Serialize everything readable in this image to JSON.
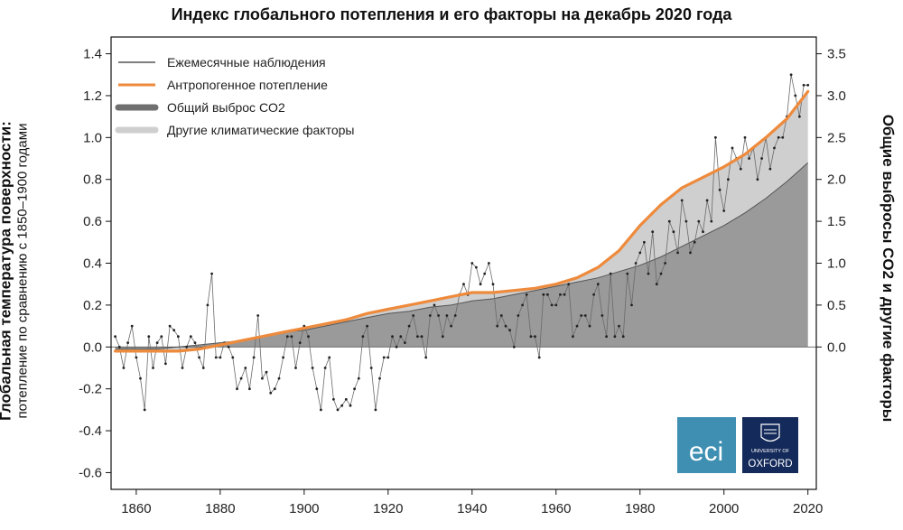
{
  "title": "Индекс глобального потепления и его факторы на декабрь 2020 года",
  "ylabel_left_main": "Глобальная температура поверхности:",
  "ylabel_left_sub": "потепление по сравнению с 1850–1900 годами",
  "ylabel_right": "Общие выбросы CO2 и другие факторы",
  "logos": {
    "eci": "eci",
    "oxford_small": "UNIVERSITY OF",
    "oxford": "OXFORD"
  },
  "colors": {
    "observations": "#444444",
    "anthropogenic": "#ee8a3c",
    "co2": "#9a9a9a",
    "other": "#cfcfcf",
    "eci_bg": "#3f8fb2",
    "oxford_bg": "#142a5a"
  },
  "chart_data": {
    "type": "line",
    "title": "Индекс глобального потепления и его факторы на декабрь 2020 года",
    "xlim": [
      1854,
      2022
    ],
    "ylim": [
      -0.68,
      1.48
    ],
    "y2lim": [
      -1.7,
      3.7
    ],
    "x_ticks": [
      1860,
      1880,
      1900,
      1920,
      1940,
      1960,
      1980,
      2000,
      2020
    ],
    "y_ticks": [
      -0.6,
      -0.4,
      -0.2,
      0.0,
      0.2,
      0.4,
      0.6,
      0.8,
      1.0,
      1.2,
      1.4
    ],
    "y_tick_labels": [
      "-0.6",
      "-0.4",
      "-0.2",
      "0.0",
      "0.2",
      "0.4",
      "0.6",
      "0.8",
      "1.0",
      "1.2",
      "1.4"
    ],
    "y2_ticks": [
      0.0,
      0.5,
      1.0,
      1.5,
      2.0,
      2.5,
      3.0,
      3.5
    ],
    "y2_tick_labels": [
      "0.0",
      "0.5",
      "1.0",
      "1.5",
      "2.0",
      "2.5",
      "3.0",
      "3.5"
    ],
    "legend_position": "top-left",
    "legend": [
      "Ежемесячные наблюдения",
      "Антропогенное потепление",
      "Общий выброс CO2",
      "Другие климатические факторы"
    ],
    "series": [
      {
        "name": "Антропогенное потепление",
        "x": [
          1855,
          1860,
          1865,
          1870,
          1875,
          1880,
          1885,
          1890,
          1895,
          1900,
          1905,
          1910,
          1915,
          1920,
          1925,
          1930,
          1935,
          1940,
          1945,
          1950,
          1955,
          1960,
          1965,
          1970,
          1975,
          1980,
          1985,
          1990,
          1995,
          2000,
          2005,
          2010,
          2015,
          2020
        ],
        "y": [
          -0.02,
          -0.02,
          -0.02,
          -0.02,
          -0.01,
          0.01,
          0.03,
          0.05,
          0.07,
          0.09,
          0.11,
          0.13,
          0.16,
          0.18,
          0.2,
          0.22,
          0.24,
          0.26,
          0.26,
          0.27,
          0.28,
          0.3,
          0.33,
          0.38,
          0.46,
          0.58,
          0.68,
          0.76,
          0.81,
          0.86,
          0.92,
          1.0,
          1.09,
          1.22
        ]
      },
      {
        "name": "Общий выброс CO2",
        "x": [
          1855,
          1860,
          1865,
          1870,
          1875,
          1880,
          1885,
          1890,
          1895,
          1900,
          1905,
          1910,
          1915,
          1920,
          1925,
          1930,
          1935,
          1940,
          1945,
          1950,
          1955,
          1960,
          1965,
          1970,
          1975,
          1980,
          1985,
          1990,
          1995,
          2000,
          2005,
          2010,
          2015,
          2020
        ],
        "y": [
          -0.01,
          -0.01,
          -0.01,
          0.0,
          0.01,
          0.02,
          0.03,
          0.05,
          0.07,
          0.08,
          0.1,
          0.12,
          0.14,
          0.16,
          0.17,
          0.19,
          0.2,
          0.22,
          0.23,
          0.25,
          0.27,
          0.29,
          0.31,
          0.33,
          0.36,
          0.39,
          0.43,
          0.48,
          0.53,
          0.58,
          0.64,
          0.71,
          0.79,
          0.88
        ]
      },
      {
        "name": "Ежемесячные наблюдения",
        "x": [
          1855,
          1856,
          1857,
          1858,
          1859,
          1860,
          1861,
          1862,
          1863,
          1864,
          1865,
          1866,
          1867,
          1868,
          1869,
          1870,
          1871,
          1872,
          1873,
          1874,
          1875,
          1876,
          1877,
          1878,
          1879,
          1880,
          1881,
          1882,
          1883,
          1884,
          1885,
          1886,
          1887,
          1888,
          1889,
          1890,
          1891,
          1892,
          1893,
          1894,
          1895,
          1896,
          1897,
          1898,
          1899,
          1900,
          1901,
          1902,
          1903,
          1904,
          1905,
          1906,
          1907,
          1908,
          1909,
          1910,
          1911,
          1912,
          1913,
          1914,
          1915,
          1916,
          1917,
          1918,
          1919,
          1920,
          1921,
          1922,
          1923,
          1924,
          1925,
          1926,
          1927,
          1928,
          1929,
          1930,
          1931,
          1932,
          1933,
          1934,
          1935,
          1936,
          1937,
          1938,
          1939,
          1940,
          1941,
          1942,
          1943,
          1944,
          1945,
          1946,
          1947,
          1948,
          1949,
          1950,
          1951,
          1952,
          1953,
          1954,
          1955,
          1956,
          1957,
          1958,
          1959,
          1960,
          1961,
          1962,
          1963,
          1964,
          1965,
          1966,
          1967,
          1968,
          1969,
          1970,
          1971,
          1972,
          1973,
          1974,
          1975,
          1976,
          1977,
          1978,
          1979,
          1980,
          1981,
          1982,
          1983,
          1984,
          1985,
          1986,
          1987,
          1988,
          1989,
          1990,
          1991,
          1992,
          1993,
          1994,
          1995,
          1996,
          1997,
          1998,
          1999,
          2000,
          2001,
          2002,
          2003,
          2004,
          2005,
          2006,
          2007,
          2008,
          2009,
          2010,
          2011,
          2012,
          2013,
          2014,
          2015,
          2016,
          2017,
          2018,
          2019,
          2020
        ],
        "y": [
          0.05,
          0.0,
          -0.1,
          0.02,
          0.1,
          -0.05,
          -0.15,
          -0.3,
          0.05,
          -0.1,
          0.02,
          0.05,
          -0.08,
          0.1,
          0.08,
          0.05,
          -0.1,
          0.0,
          0.05,
          0.02,
          -0.05,
          -0.1,
          0.2,
          0.35,
          -0.05,
          -0.05,
          0.02,
          0.0,
          -0.05,
          -0.2,
          -0.15,
          -0.1,
          -0.2,
          -0.05,
          0.15,
          -0.15,
          -0.12,
          -0.22,
          -0.2,
          -0.15,
          -0.05,
          0.05,
          0.05,
          -0.1,
          0.02,
          0.1,
          0.05,
          -0.1,
          -0.2,
          -0.3,
          -0.1,
          -0.05,
          -0.25,
          -0.3,
          -0.28,
          -0.25,
          -0.28,
          -0.2,
          -0.15,
          0.05,
          0.1,
          -0.1,
          -0.3,
          -0.15,
          -0.05,
          -0.05,
          0.05,
          0.0,
          0.05,
          0.02,
          0.1,
          0.15,
          0.05,
          0.05,
          -0.05,
          0.15,
          0.2,
          0.15,
          0.05,
          0.15,
          0.1,
          0.15,
          0.25,
          0.3,
          0.25,
          0.4,
          0.38,
          0.3,
          0.35,
          0.4,
          0.3,
          0.1,
          0.15,
          0.1,
          0.08,
          0.0,
          0.15,
          0.2,
          0.25,
          0.05,
          0.05,
          -0.05,
          0.25,
          0.25,
          0.2,
          0.2,
          0.25,
          0.25,
          0.3,
          0.05,
          0.1,
          0.15,
          0.15,
          0.1,
          0.25,
          0.3,
          0.15,
          0.05,
          0.35,
          0.05,
          0.1,
          0.05,
          0.35,
          0.2,
          0.4,
          0.45,
          0.5,
          0.35,
          0.55,
          0.3,
          0.35,
          0.4,
          0.6,
          0.55,
          0.45,
          0.7,
          0.6,
          0.45,
          0.5,
          0.6,
          0.55,
          0.7,
          0.6,
          1.0,
          0.75,
          0.65,
          0.8,
          0.95,
          0.9,
          0.85,
          1.0,
          0.9,
          0.95,
          0.8,
          0.9,
          1.0,
          0.85,
          0.95,
          1.0,
          1.0,
          1.1,
          1.3,
          1.2,
          1.1,
          1.25,
          1.25
        ]
      }
    ]
  }
}
